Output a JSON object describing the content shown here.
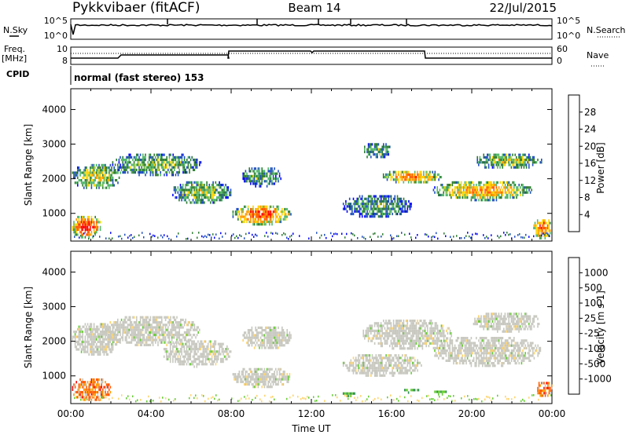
{
  "header": {
    "station": "Pykkvibaer (fitACF)",
    "beam": "Beam 14",
    "date": "22/Jul/2015"
  },
  "top_panels": {
    "nsky_label": "N.Sky",
    "nsky_ticks": [
      "10^5",
      "10^0"
    ],
    "nsearch_label": "N.Search",
    "nsearch_ticks": [
      "10^5",
      "10^0"
    ],
    "freq_label_1": "Freq.",
    "freq_label_2": "[MHz]",
    "freq_ticks": [
      "10",
      "8"
    ],
    "nave_label": "Nave",
    "nave_ticks": [
      "60",
      "0"
    ],
    "cpid_label": "CPID",
    "cpid_text": "normal (fast stereo) 153"
  },
  "chart_data": [
    {
      "type": "heatmap",
      "name": "power",
      "ylabel": "Slant Range [km]",
      "yticks": [
        1000,
        2000,
        3000,
        4000
      ],
      "ylim": [
        200,
        4600
      ],
      "xlim": [
        0,
        24
      ],
      "colorbar_label": "Power [dB]",
      "colorbar_ticks": [
        "4",
        "8",
        "12",
        "16",
        "20",
        "24",
        "28"
      ],
      "colorbar_colors": [
        "#0000ff",
        "#1f4fc0",
        "#2e7d32",
        "#52b86a",
        "#ffd400",
        "#ff9900",
        "#ff5a00",
        "#ff0000"
      ],
      "bands": [
        {
          "x0": 0.0,
          "x1": 2.5,
          "r0": 1700,
          "r1": 2500,
          "intensity": 0.55
        },
        {
          "x0": 0.0,
          "x1": 1.5,
          "r0": 300,
          "r1": 1000,
          "intensity": 0.95
        },
        {
          "x0": 2.0,
          "x1": 6.5,
          "r0": 2100,
          "r1": 2800,
          "intensity": 0.45
        },
        {
          "x0": 5.0,
          "x1": 8.0,
          "r0": 1300,
          "r1": 2000,
          "intensity": 0.5
        },
        {
          "x0": 8.0,
          "x1": 11.0,
          "r0": 700,
          "r1": 1300,
          "intensity": 0.85
        },
        {
          "x0": 8.5,
          "x1": 10.5,
          "r0": 1800,
          "r1": 2400,
          "intensity": 0.4
        },
        {
          "x0": 13.5,
          "x1": 17.0,
          "r0": 900,
          "r1": 1600,
          "intensity": 0.35
        },
        {
          "x0": 15.5,
          "x1": 18.5,
          "r0": 1900,
          "r1": 2300,
          "intensity": 0.75
        },
        {
          "x0": 14.5,
          "x1": 16.0,
          "r0": 2600,
          "r1": 3100,
          "intensity": 0.4
        },
        {
          "x0": 18.0,
          "x1": 23.0,
          "r0": 1400,
          "r1": 2000,
          "intensity": 0.7
        },
        {
          "x0": 20.0,
          "x1": 23.5,
          "r0": 2300,
          "r1": 2800,
          "intensity": 0.5
        },
        {
          "x0": 23.0,
          "x1": 24.0,
          "r0": 300,
          "r1": 900,
          "intensity": 0.85
        }
      ]
    },
    {
      "type": "heatmap",
      "name": "velocity",
      "ylabel": "Slant Range [km]",
      "xlabel": "Time UT",
      "yticks": [
        1000,
        2000,
        3000,
        4000
      ],
      "ylim": [
        200,
        4600
      ],
      "xlim": [
        0,
        24
      ],
      "xticks": [
        "00:00",
        "04:00",
        "08:00",
        "12:00",
        "16:00",
        "20:00",
        "00:00"
      ],
      "colorbar_label": "Velocity [m s-1]",
      "colorbar_ticks": [
        "1000",
        "500",
        "100",
        "25",
        "-25",
        "-100",
        "-500",
        "-1000"
      ],
      "colorbar_colors": [
        "#1a3fb0",
        "#2f7fc0",
        "#2e8b57",
        "#66cc33",
        "#c8c8c0",
        "#ffd36b",
        "#ff9900",
        "#ff5a00",
        "#ff0000"
      ],
      "bands": [
        {
          "x0": 0.0,
          "x1": 2.5,
          "r0": 1600,
          "r1": 2600,
          "v": "grey"
        },
        {
          "x0": 0.0,
          "x1": 2.0,
          "r0": 300,
          "r1": 1000,
          "v": "neg_strong"
        },
        {
          "x0": 1.5,
          "x1": 6.5,
          "r0": 1900,
          "r1": 2800,
          "v": "grey"
        },
        {
          "x0": 4.5,
          "x1": 8.0,
          "r0": 1300,
          "r1": 2100,
          "v": "grey"
        },
        {
          "x0": 8.0,
          "x1": 11.0,
          "r0": 700,
          "r1": 1300,
          "v": "grey"
        },
        {
          "x0": 8.5,
          "x1": 11.0,
          "r0": 1800,
          "r1": 2500,
          "v": "grey"
        },
        {
          "x0": 13.5,
          "x1": 17.5,
          "r0": 1000,
          "r1": 1700,
          "v": "grey"
        },
        {
          "x0": 14.5,
          "x1": 19.0,
          "r0": 1800,
          "r1": 2700,
          "v": "grey"
        },
        {
          "x0": 18.0,
          "x1": 23.5,
          "r0": 1300,
          "r1": 2200,
          "v": "grey"
        },
        {
          "x0": 20.0,
          "x1": 23.5,
          "r0": 2300,
          "r1": 2900,
          "v": "grey"
        },
        {
          "x0": 13.5,
          "x1": 14.2,
          "r0": 450,
          "r1": 600,
          "v": "pos_green"
        },
        {
          "x0": 16.5,
          "x1": 17.4,
          "r0": 550,
          "r1": 700,
          "v": "pos_dark"
        },
        {
          "x0": 18.0,
          "x1": 18.8,
          "r0": 500,
          "r1": 650,
          "v": "pos_green"
        },
        {
          "x0": 23.2,
          "x1": 24.0,
          "r0": 400,
          "r1": 900,
          "v": "neg_strong"
        }
      ]
    }
  ]
}
